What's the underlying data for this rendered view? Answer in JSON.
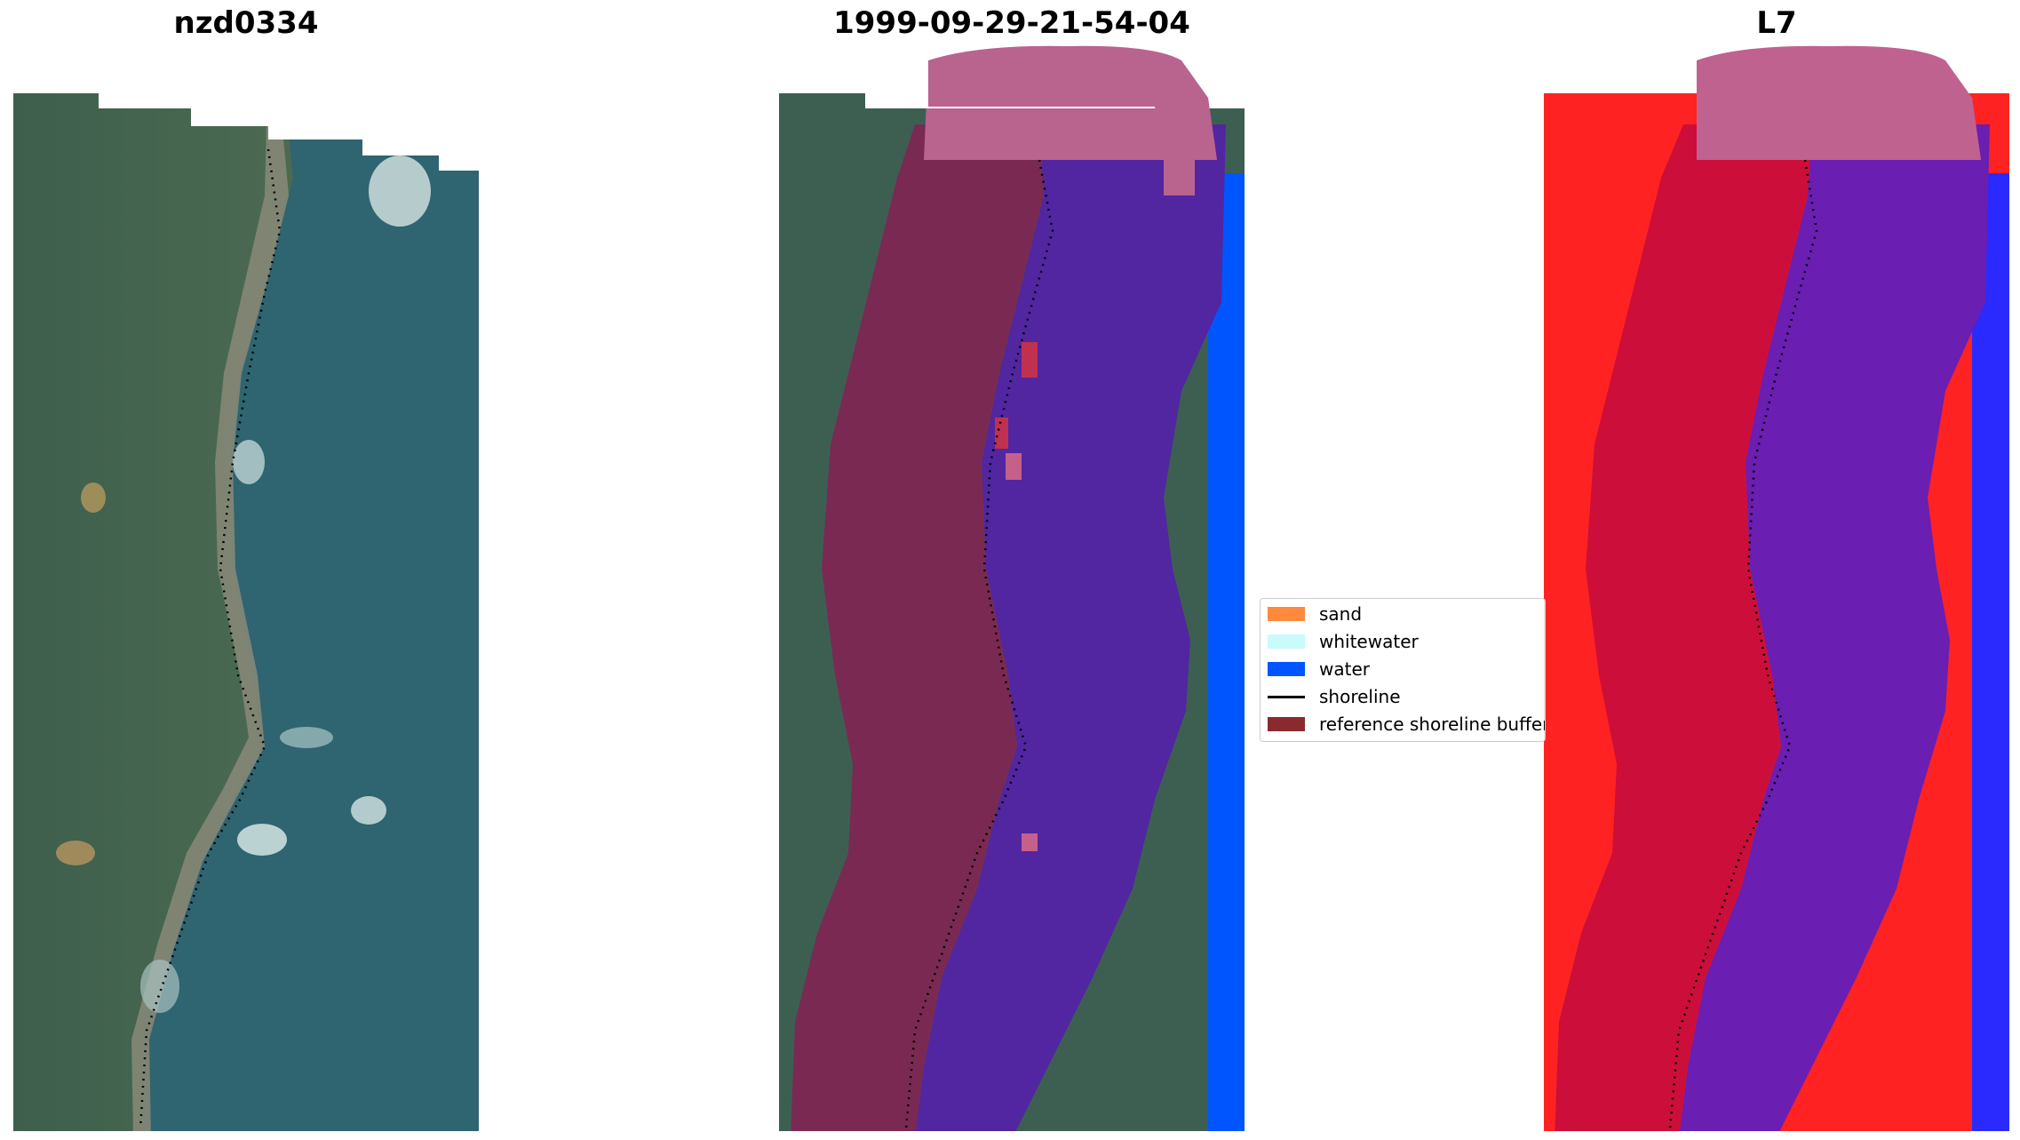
{
  "panels": [
    {
      "title": "nzd0334"
    },
    {
      "title": "1999-09-29-21-54-04"
    },
    {
      "title": "L7"
    }
  ],
  "legend": {
    "items": [
      {
        "label": "sand",
        "color": "#ff8a3d",
        "kind": "patch"
      },
      {
        "label": "whitewater",
        "color": "#c9fbfb",
        "kind": "patch"
      },
      {
        "label": "water",
        "color": "#0055ff",
        "kind": "patch"
      },
      {
        "label": "shoreline",
        "color": "#000000",
        "kind": "line"
      },
      {
        "label": "reference shoreline buffer",
        "color": "#8b2a2e",
        "kind": "patch"
      }
    ]
  }
}
